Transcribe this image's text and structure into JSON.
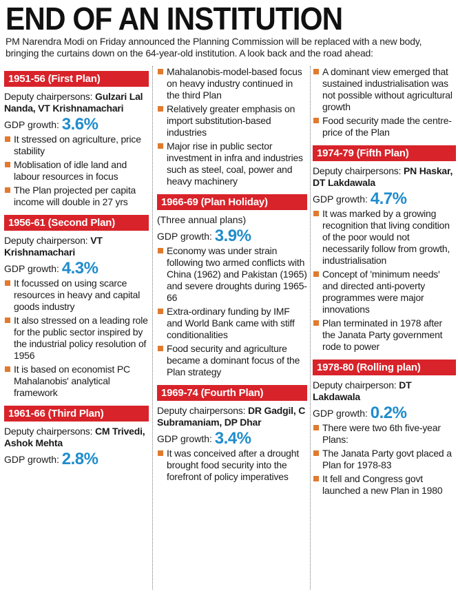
{
  "headline": "END OF AN INSTITUTION",
  "intro": "PM Narendra Modi on Friday announced the Planning Commission will be replaced with a new body, bringing the curtains down on the 64-year-old institution. A look back and the road ahead:",
  "gdp_label": "GDP growth:",
  "colors": {
    "plan_bar": "#d8232a",
    "gdp_value": "#1f8ccc",
    "bullet": "#e17a2e"
  },
  "plans": {
    "p1": {
      "years": "1951-56",
      "name": "(First Plan)",
      "deputy_label": "Deputy chairpersons:",
      "deputy_names": "Gulzari Lal Nanda, VT Krishnamachari",
      "gdp": "3.6%",
      "bullets": [
        "It stressed on agriculture, price stability",
        "Moblisation of idle land and labour resources in focus",
        "The Plan projected per capita income will double in 27 yrs"
      ]
    },
    "p2": {
      "years": "1956-61",
      "name": "(Second Plan)",
      "deputy_label": "Deputy chairperson:",
      "deputy_names": "VT Krishnamachari",
      "gdp": "4.3%",
      "bullets": [
        "It focussed on using scarce resources in heavy and capital goods industry",
        "It also stressed on a leading role for the public sector inspired by the industrial policy resolution of 1956",
        "It is based on economist PC Mahalanobis' analytical framework"
      ]
    },
    "p3": {
      "years": "1961-66",
      "name": "(Third Plan)",
      "deputy_label": "Deputy chairpersons:",
      "deputy_names": "CM Trivedi, Ashok Mehta",
      "gdp": "2.8%",
      "bullets": [
        "Mahalanobis-model-based focus on heavy industry continued in the third Plan",
        "Relatively greater emphasis on import substitution-based industries",
        "Major rise in public sector investment in infra and industries such as steel, coal, power and heavy machinery"
      ]
    },
    "p4": {
      "years": "1966-69",
      "name": "(Plan Holiday)",
      "note": "(Three annual plans)",
      "gdp": "3.9%",
      "bullets": [
        "Economy was under strain following two armed conflicts with China (1962) and Pakistan (1965) and severe droughts during 1965-66",
        "Extra-ordinary funding by IMF and World Bank came with stiff conditionalities",
        "Food security and agriculture became a dominant focus of the Plan strategy"
      ]
    },
    "p5": {
      "years": "1969-74",
      "name": "(Fourth Plan)",
      "deputy_label": "Deputy chairpersons:",
      "deputy_names": "DR Gadgil, C Subramaniam, DP Dhar",
      "gdp": "3.4%",
      "bullets": [
        "It was conceived after a drought brought food security into the forefront of policy imperatives",
        "A dominant view emerged that sustained industrialisation was not possible without agricultural growth",
        "Food security made the centre-price of the Plan"
      ]
    },
    "p6": {
      "years": "1974-79",
      "name": "(Fifth Plan)",
      "deputy_label": "Deputy chairpersons:",
      "deputy_names": "PN Haskar, DT Lakdawala",
      "gdp": "4.7%",
      "bullets": [
        "It was marked by a growing recognition that living condition of the poor would not necessarily follow from growth, industrialisation",
        "Concept of 'minimum needs' and directed anti-poverty programmes were major innovations",
        "Plan terminated in 1978 after the Janata Party government rode to power"
      ]
    },
    "p7": {
      "years": "1978-80",
      "name": "(Rolling plan)",
      "deputy_label": "Deputy chairperson:",
      "deputy_names": "DT Lakdawala",
      "gdp": "0.2%",
      "bullets": [
        "There were two 6th five-year Plans:",
        "The Janata Party govt placed a Plan for 1978-83",
        "It fell and Congress govt launched a new Plan in 1980"
      ]
    }
  }
}
